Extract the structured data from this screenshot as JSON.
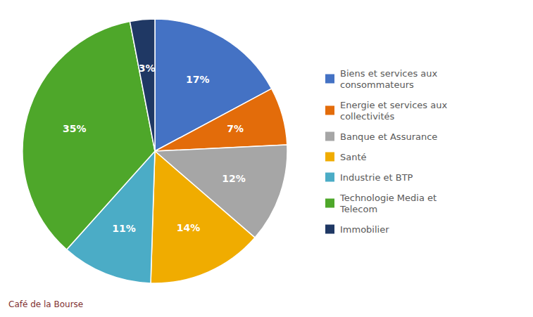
{
  "chart_data": {
    "type": "pie",
    "categories": [
      "Biens et services aux\nconsommateurs",
      "Energie et services aux\ncollectivités",
      "Banque et Assurance",
      "Santé",
      "Industrie et BTP",
      "Technologie Media et\nTelecom",
      "Immobilier"
    ],
    "values": [
      17,
      7,
      12,
      14,
      11,
      35,
      3
    ],
    "value_labels": [
      "17%",
      "7%",
      "12%",
      "14%",
      "11%",
      "35%",
      "3%"
    ],
    "colors": [
      "#4472C4",
      "#E36C0A",
      "#A6A6A6",
      "#F0AC00",
      "#4BACC6",
      "#4EA72A",
      "#1F3864"
    ],
    "data_labels": true,
    "legend": "right",
    "annotations": [
      "Café de la Bourse"
    ]
  }
}
